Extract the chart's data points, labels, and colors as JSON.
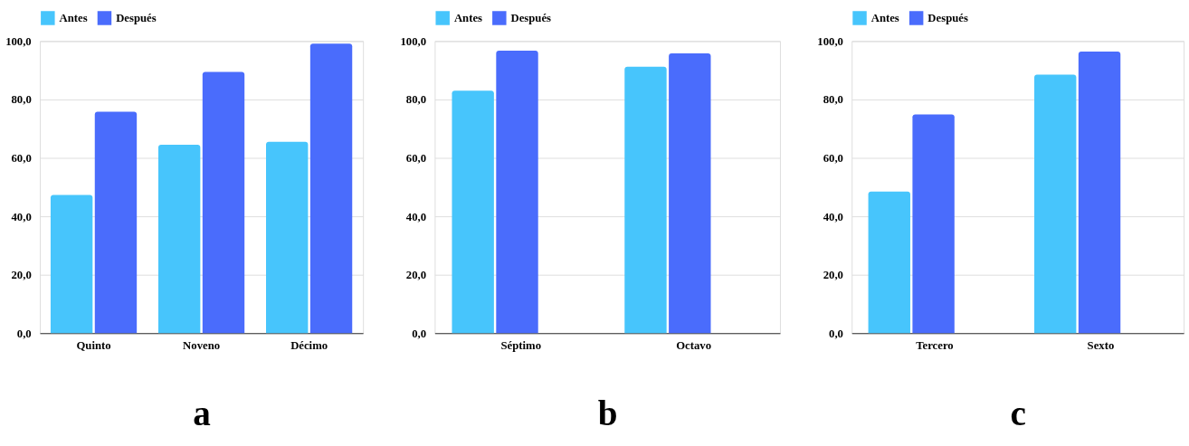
{
  "chart_data": [
    {
      "type": "bar",
      "xlabel": "a",
      "categories": [
        "Quinto",
        "Noveno",
        "Décimo"
      ],
      "series": [
        {
          "name": "Antes",
          "color": "#47c5fc",
          "values": [
            47.3,
            64.5,
            65.5
          ]
        },
        {
          "name": "Después",
          "color": "#4a6cfc",
          "values": [
            75.8,
            89.4,
            99.1
          ]
        }
      ],
      "ylim": [
        0,
        100
      ],
      "yticks": [
        {
          "value": 0,
          "label": "0,0"
        },
        {
          "value": 20,
          "label": "20,0"
        },
        {
          "value": 40,
          "label": "40,0"
        },
        {
          "value": 60,
          "label": "60,0"
        },
        {
          "value": 80,
          "label": "80,0"
        },
        {
          "value": 100,
          "label": "100,0"
        }
      ],
      "grid": "y",
      "legend": "top"
    },
    {
      "type": "bar",
      "xlabel": "b",
      "categories": [
        "Séptimo",
        "Octavo"
      ],
      "series": [
        {
          "name": "Antes",
          "color": "#47c5fc",
          "values": [
            83.0,
            91.2
          ]
        },
        {
          "name": "Después",
          "color": "#4a6cfc",
          "values": [
            96.7,
            95.8
          ]
        }
      ],
      "ylim": [
        0,
        100
      ],
      "yticks": [
        {
          "value": 0,
          "label": "0,0"
        },
        {
          "value": 20,
          "label": "20,0"
        },
        {
          "value": 40,
          "label": "40,0"
        },
        {
          "value": 60,
          "label": "60,0"
        },
        {
          "value": 80,
          "label": "80,0"
        },
        {
          "value": 100,
          "label": "100,0"
        }
      ],
      "grid": "y",
      "legend": "top"
    },
    {
      "type": "bar",
      "xlabel": "c",
      "categories": [
        "Tercero",
        "Sexto"
      ],
      "series": [
        {
          "name": "Antes",
          "color": "#47c5fc",
          "values": [
            48.5,
            88.5
          ]
        },
        {
          "name": "Después",
          "color": "#4a6cfc",
          "values": [
            74.9,
            96.4
          ]
        }
      ],
      "ylim": [
        0,
        100
      ],
      "yticks": [
        {
          "value": 0,
          "label": "0,0"
        },
        {
          "value": 20,
          "label": "20,0"
        },
        {
          "value": 40,
          "label": "40,0"
        },
        {
          "value": 60,
          "label": "60,0"
        },
        {
          "value": 80,
          "label": "80,0"
        },
        {
          "value": 100,
          "label": "100,0"
        }
      ],
      "grid": "y",
      "legend": "top"
    }
  ]
}
